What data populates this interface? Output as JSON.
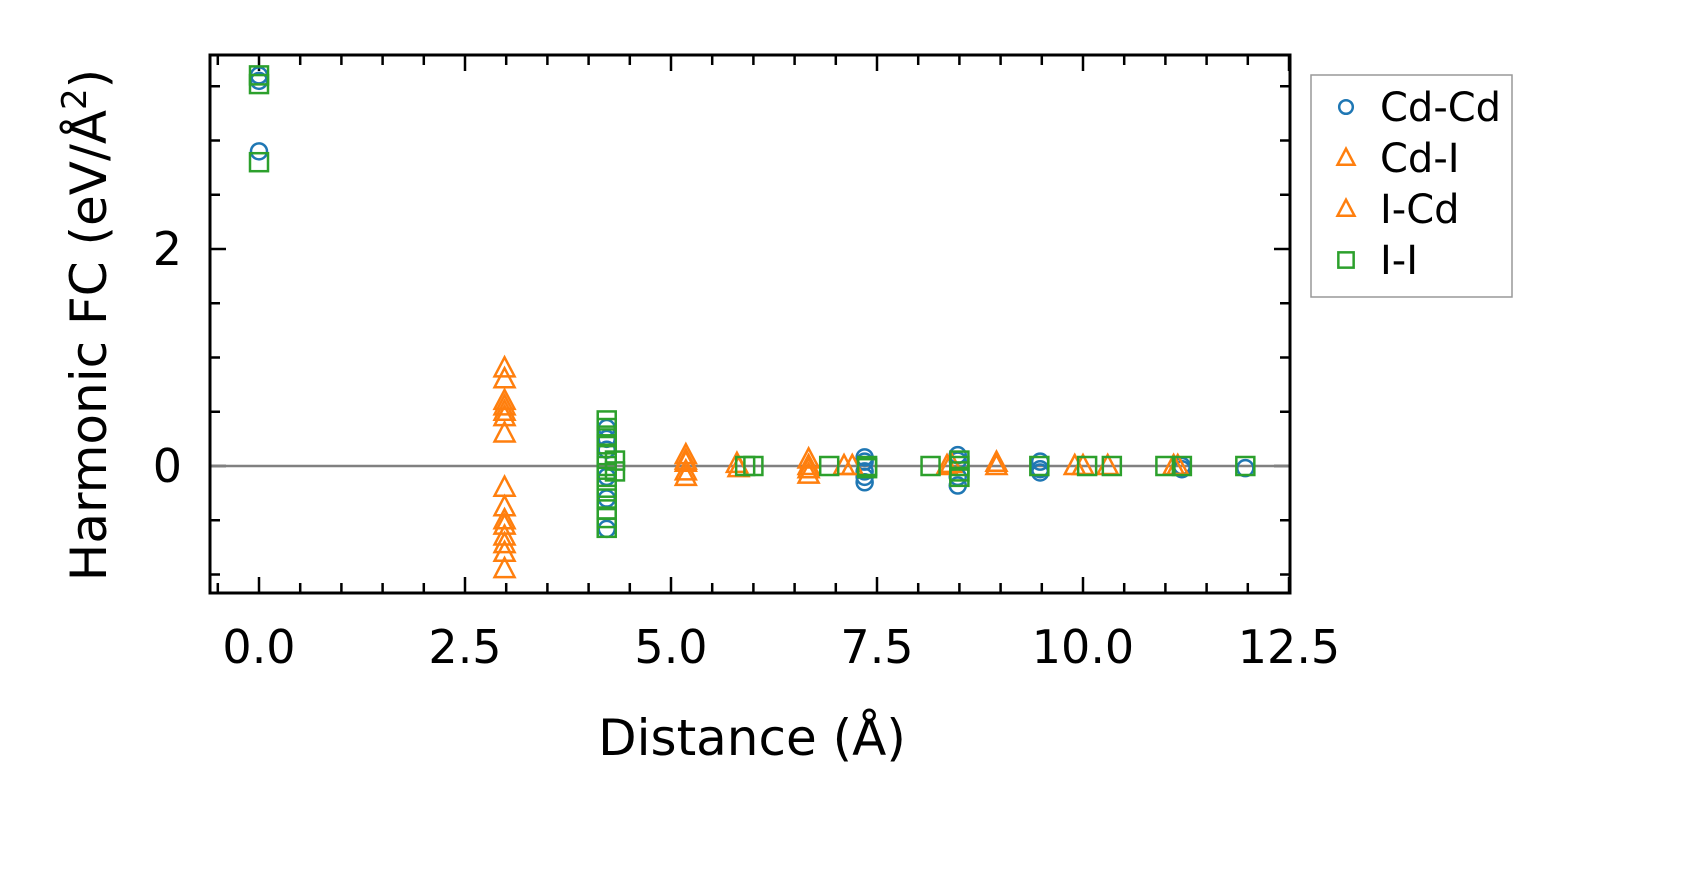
{
  "chart_data": {
    "type": "scatter",
    "title": "",
    "xlabel": "Distance (Å)",
    "ylabel": "Harmonic FC (eV/Å²)",
    "ylabel_main": "Harmonic FC (eV/Å",
    "ylabel_sup": "2",
    "ylabel_end": ")",
    "xlim": [
      -0.6,
      12.5
    ],
    "ylim": [
      -1.17,
      3.8
    ],
    "xticks": [
      0.0,
      2.5,
      5.0,
      7.5,
      10.0,
      12.5
    ],
    "xtick_labels": [
      "0.0",
      "2.5",
      "5.0",
      "7.5",
      "10.0",
      "12.5"
    ],
    "yticks": [
      0,
      2
    ],
    "ytick_labels": [
      "0",
      "2"
    ],
    "zero_line": true,
    "grid": false,
    "legend_position": "outside-right-top",
    "series": [
      {
        "name": "Cd-Cd",
        "marker": "circle",
        "color": "#1f77b4",
        "points": [
          [
            0,
            3.55
          ],
          [
            0,
            3.6
          ],
          [
            0,
            2.9
          ],
          [
            4.22,
            0.35
          ],
          [
            4.22,
            0.25
          ],
          [
            4.22,
            0.15
          ],
          [
            4.22,
            -0.1
          ],
          [
            4.22,
            -0.3
          ],
          [
            4.22,
            -0.58
          ],
          [
            7.35,
            0.08
          ],
          [
            7.35,
            0.04
          ],
          [
            7.35,
            -0.05
          ],
          [
            7.35,
            -0.1
          ],
          [
            7.35,
            -0.15
          ],
          [
            8.48,
            0.1
          ],
          [
            8.48,
            0.05
          ],
          [
            8.48,
            -0.1
          ],
          [
            8.48,
            -0.18
          ],
          [
            9.48,
            0.04
          ],
          [
            9.48,
            -0.03
          ],
          [
            9.48,
            -0.06
          ],
          [
            11.2,
            0.0
          ],
          [
            11.2,
            -0.03
          ],
          [
            11.97,
            -0.02
          ]
        ]
      },
      {
        "name": "Cd-I",
        "marker": "triangle",
        "color": "#ff7f0e",
        "points": [
          [
            2.98,
            0.9
          ],
          [
            2.98,
            0.8
          ],
          [
            2.98,
            0.55
          ],
          [
            2.98,
            0.45
          ],
          [
            2.98,
            0.3
          ],
          [
            2.98,
            -0.2
          ],
          [
            2.98,
            -0.38
          ],
          [
            2.98,
            -0.5
          ],
          [
            2.98,
            -0.65
          ],
          [
            2.98,
            -0.8
          ],
          [
            2.98,
            -0.95
          ],
          [
            5.18,
            0.1
          ],
          [
            5.18,
            0.03
          ],
          [
            5.18,
            -0.05
          ],
          [
            5.8,
            0.02
          ],
          [
            6.67,
            0.06
          ],
          [
            6.67,
            -0.03
          ],
          [
            7.1,
            0.0
          ],
          [
            8.35,
            0.0
          ],
          [
            8.95,
            0.03
          ],
          [
            9.9,
            0.0
          ],
          [
            10.3,
            0.0
          ],
          [
            11.1,
            0.0
          ]
        ]
      },
      {
        "name": "I-Cd",
        "marker": "triangle",
        "color": "#ff7f0e",
        "points": [
          [
            2.98,
            0.6
          ],
          [
            2.98,
            0.5
          ],
          [
            2.98,
            -0.55
          ],
          [
            2.98,
            -0.72
          ],
          [
            5.18,
            0.05
          ],
          [
            5.18,
            -0.1
          ],
          [
            5.82,
            -0.02
          ],
          [
            6.67,
            0.0
          ],
          [
            6.67,
            -0.08
          ],
          [
            7.2,
            0.0
          ],
          [
            8.4,
            0.02
          ],
          [
            8.95,
            0.0
          ],
          [
            10.0,
            0.0
          ],
          [
            11.15,
            0.0
          ]
        ]
      },
      {
        "name": "I-I",
        "marker": "square",
        "color": "#2ca02c",
        "points": [
          [
            0,
            3.6
          ],
          [
            0,
            3.52
          ],
          [
            0,
            2.8
          ],
          [
            4.22,
            0.42
          ],
          [
            4.22,
            0.35
          ],
          [
            4.22,
            0.28
          ],
          [
            4.22,
            0.2
          ],
          [
            4.22,
            0.1
          ],
          [
            4.22,
            0.0
          ],
          [
            4.22,
            -0.1
          ],
          [
            4.22,
            -0.2
          ],
          [
            4.22,
            -0.3
          ],
          [
            4.22,
            -0.4
          ],
          [
            4.22,
            -0.48
          ],
          [
            4.22,
            -0.57
          ],
          [
            4.32,
            0.05
          ],
          [
            4.32,
            -0.05
          ],
          [
            5.9,
            0.0
          ],
          [
            6.0,
            0.0
          ],
          [
            6.92,
            0.0
          ],
          [
            7.38,
            0.0
          ],
          [
            7.38,
            -0.02
          ],
          [
            8.15,
            0.0
          ],
          [
            8.5,
            0.05
          ],
          [
            8.5,
            0.0
          ],
          [
            8.5,
            -0.05
          ],
          [
            8.5,
            -0.1
          ],
          [
            9.47,
            0.0
          ],
          [
            10.05,
            0.0
          ],
          [
            10.35,
            0.0
          ],
          [
            11.0,
            0.0
          ],
          [
            11.2,
            0.0
          ],
          [
            11.97,
            0.0
          ]
        ]
      }
    ]
  }
}
